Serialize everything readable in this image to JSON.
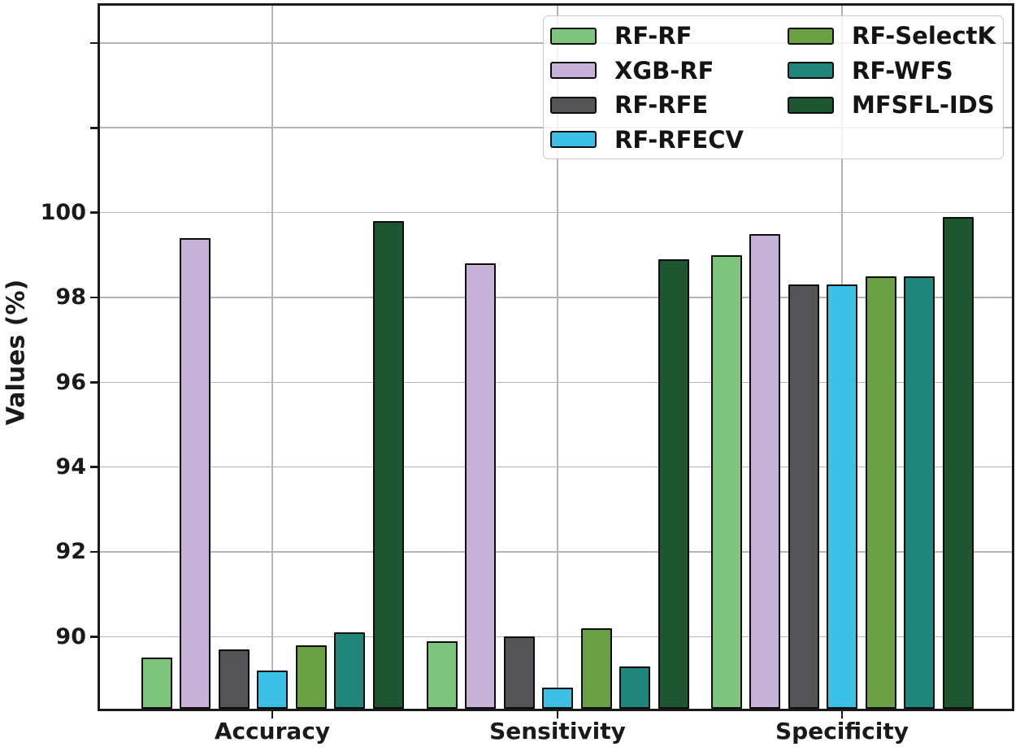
{
  "chart_data": {
    "type": "bar",
    "title": "",
    "xlabel": "",
    "ylabel": "Values (%)",
    "categories": [
      "Accuracy",
      "Sensitivity",
      "Specificity"
    ],
    "series": [
      {
        "name": "RF-RF",
        "color": "#7dc57c",
        "values": [
          89.5,
          89.9,
          99.0
        ]
      },
      {
        "name": "XGB-RF",
        "color": "#c6b1d8",
        "values": [
          99.4,
          98.8,
          99.5
        ]
      },
      {
        "name": "RF-RFE",
        "color": "#545456",
        "values": [
          89.7,
          90.0,
          98.3
        ]
      },
      {
        "name": "RF-RFECV",
        "color": "#3cc0e6",
        "values": [
          89.2,
          88.8,
          98.3
        ]
      },
      {
        "name": "RF-SelectK",
        "color": "#6ba144",
        "values": [
          89.8,
          90.2,
          98.5
        ]
      },
      {
        "name": "RF-WFS",
        "color": "#20857a",
        "values": [
          90.1,
          89.3,
          98.5
        ]
      },
      {
        "name": "MFSFL-IDS",
        "color": "#1e5631",
        "values": [
          99.8,
          98.9,
          99.9
        ]
      }
    ],
    "ylim": [
      88.3,
      104.9
    ],
    "yticks_labeled": [
      "90",
      "92",
      "94",
      "96",
      "98",
      "100"
    ],
    "yticks_unlabeled": [
      "102",
      "104"
    ],
    "grid": true,
    "legend": {
      "position": "upper right",
      "columns": [
        [
          "RF-RF",
          "XGB-RF",
          "RF-RFE",
          "RF-RFECV"
        ],
        [
          "RF-SelectK",
          "RF-WFS",
          "MFSFL-IDS"
        ]
      ]
    },
    "colors": {
      "grid": "#b4b4b4",
      "spine": "#1a1a1a",
      "bar_edge": "#0d0d0d",
      "text": "#1a1a1a"
    }
  }
}
